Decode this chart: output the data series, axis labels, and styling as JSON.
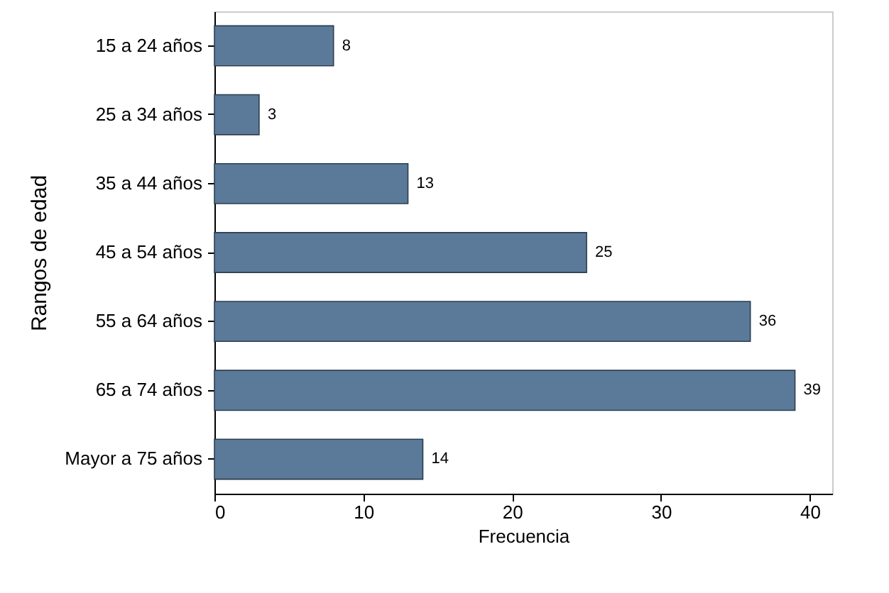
{
  "chart_data": {
    "type": "bar",
    "orientation": "horizontal",
    "xlabel": "Frecuencia",
    "ylabel": "Rangos de edad",
    "categories": [
      "15 a 24 años",
      "25 a 34 años",
      "35 a 44 años",
      "45 a 54 años",
      "55 a 64 años",
      "65 a 74 años",
      "Mayor a 75 años"
    ],
    "values": [
      8,
      3,
      13,
      25,
      36,
      39,
      14
    ],
    "color": "#5b7a99",
    "xlim": [
      0,
      41.5
    ],
    "xticks": [
      0,
      10,
      20,
      30,
      40
    ],
    "data_labels": true,
    "grid": false
  }
}
